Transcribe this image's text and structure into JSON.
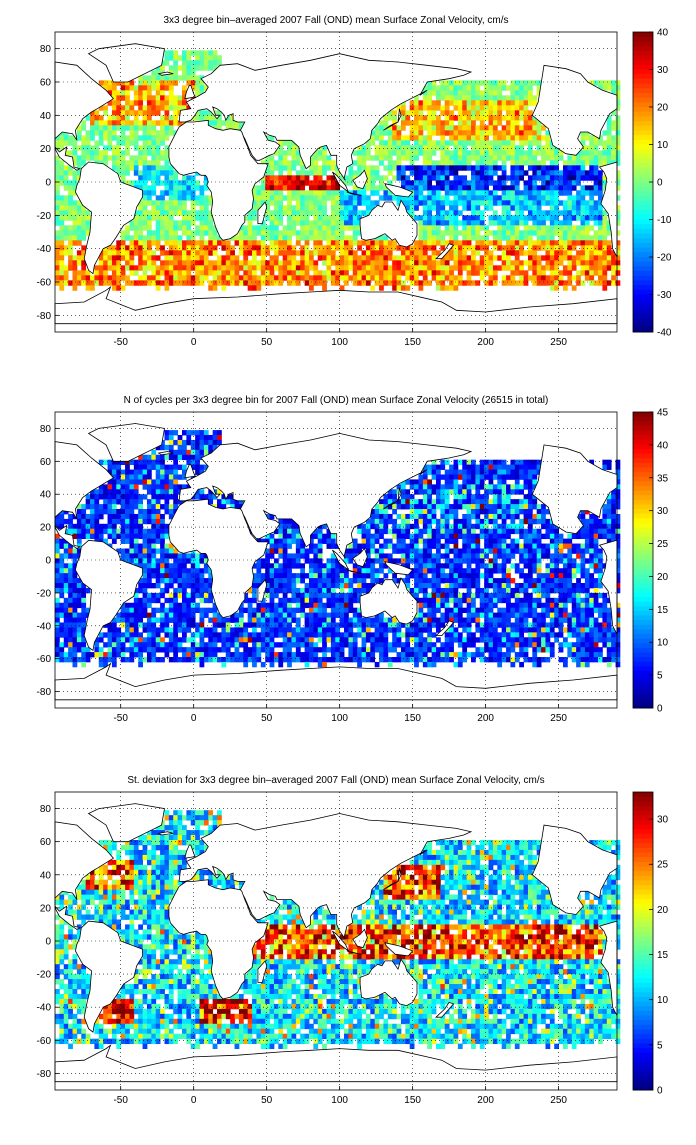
{
  "chart_data": [
    {
      "type": "heatmap",
      "title": "3x3 degree bin–averaged 2007 Fall (OND) mean Surface Zonal Velocity, cm/s",
      "xlabel": "",
      "ylabel": "",
      "xlim": [
        -95,
        290
      ],
      "ylim": [
        -90,
        90
      ],
      "xticks": [
        -50,
        0,
        50,
        100,
        150,
        200,
        250
      ],
      "yticks": [
        80,
        60,
        40,
        20,
        0,
        -20,
        -40,
        -60,
        -80
      ],
      "grid": "dotted",
      "colorbar": {
        "min": -40,
        "max": 40,
        "ticks": [
          40,
          30,
          20,
          10,
          0,
          -10,
          -20,
          -30,
          -40
        ]
      },
      "colormap": "jet",
      "bin_size_deg": 3
    },
    {
      "type": "heatmap",
      "title": "N of cycles per 3x3 degree bin for 2007 Fall (OND) mean Surface Zonal Velocity (26515 in total)",
      "xlabel": "",
      "ylabel": "",
      "xlim": [
        -95,
        290
      ],
      "ylim": [
        -90,
        90
      ],
      "xticks": [
        -50,
        0,
        50,
        100,
        150,
        200,
        250
      ],
      "yticks": [
        80,
        60,
        40,
        20,
        0,
        -20,
        -40,
        -60,
        -80
      ],
      "grid": "dotted",
      "colorbar": {
        "min": 0,
        "max": 45,
        "ticks": [
          45,
          40,
          35,
          30,
          25,
          20,
          15,
          10,
          5,
          0
        ]
      },
      "colormap": "jet",
      "bin_size_deg": 3
    },
    {
      "type": "heatmap",
      "title": "St. deviation for 3x3 degree bin–averaged 2007 Fall (OND) mean Surface Zonal Velocity, cm/s",
      "xlabel": "",
      "ylabel": "",
      "xlim": [
        -95,
        290
      ],
      "ylim": [
        -90,
        90
      ],
      "xticks": [
        -50,
        0,
        50,
        100,
        150,
        200,
        250
      ],
      "yticks": [
        80,
        60,
        40,
        20,
        0,
        -20,
        -40,
        -60,
        -80
      ],
      "grid": "dotted",
      "colorbar": {
        "min": 0,
        "max": 33,
        "ticks": [
          30,
          25,
          20,
          15,
          10,
          5,
          0
        ]
      },
      "colormap": "jet",
      "bin_size_deg": 3
    }
  ]
}
